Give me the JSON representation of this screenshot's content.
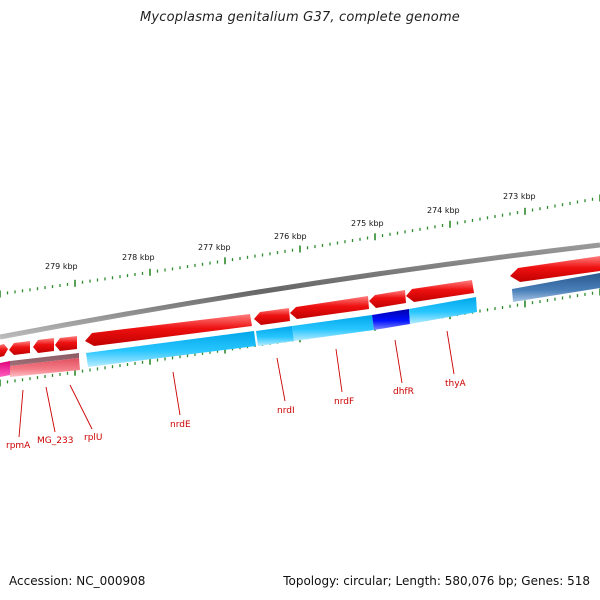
{
  "title": "Mycoplasma genitalium G37, complete genome",
  "footer": {
    "accession_label": "Accession:",
    "accession": "NC_000908",
    "topology_label": "Topology:",
    "topology": "circular",
    "length_label": "Length:",
    "length": "580,076 bp",
    "genes_label": "Genes:",
    "genes": "518"
  },
  "colors": {
    "backbone": "#7a7a7a",
    "forward_gene": "#e8000a",
    "reverse_gene": "#00bfff",
    "highlight_gene": "#0000ee",
    "pink_gene": "#f07a84",
    "magenta_gene": "#ff1aa0",
    "faded_gene": "#3a6fa6",
    "ticks": "#2d8a2d",
    "gene_label": "#cc0000"
  },
  "kbp_markers": [
    "279 kbp",
    "278 kbp",
    "277 kbp",
    "276 kbp",
    "275 kbp",
    "274 kbp",
    "273 kbp"
  ],
  "gene_labels": [
    "rpmA",
    "MG_233",
    "rplU",
    "nrdE",
    "nrdI",
    "nrdF",
    "dhfR",
    "thyA"
  ]
}
